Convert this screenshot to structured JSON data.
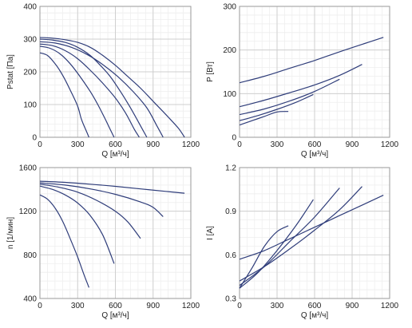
{
  "colors": {
    "curve": "#2f3d7a",
    "minor_grid": "#eeeeee",
    "major_grid": "#cfcfcf",
    "axis": "#9a9a9a"
  },
  "chart_data": [
    {
      "type": "line",
      "xlabel": "Q [м³/ч]",
      "ylabel": "Pstat [Па]",
      "xlim": [
        0,
        1200
      ],
      "ylim": [
        0,
        400
      ],
      "xticks": [
        0,
        300,
        600,
        900,
        1200
      ],
      "yticks": [
        0,
        100,
        200,
        300,
        400
      ],
      "x_minor_step": 60,
      "y_minor_step": 20,
      "grid": true,
      "legend": "none",
      "series": [
        {
          "x": [
            0,
            60,
            120,
            180,
            240,
            300,
            330,
            370,
            390
          ],
          "y": [
            258,
            250,
            225,
            190,
            145,
            95,
            55,
            18,
            0
          ]
        },
        {
          "x": [
            0,
            80,
            160,
            240,
            320,
            400,
            460,
            520,
            570,
            590
          ],
          "y": [
            278,
            272,
            255,
            225,
            185,
            140,
            100,
            55,
            15,
            0
          ]
        },
        {
          "x": [
            0,
            100,
            200,
            300,
            400,
            500,
            600,
            680,
            750,
            790
          ],
          "y": [
            285,
            280,
            265,
            240,
            205,
            165,
            120,
            75,
            25,
            0
          ]
        },
        {
          "x": [
            0,
            120,
            250,
            380,
            500,
            620,
            740,
            850,
            930,
            980
          ],
          "y": [
            292,
            288,
            275,
            252,
            222,
            185,
            140,
            90,
            35,
            0
          ]
        },
        {
          "x": [
            0,
            100,
            200,
            300,
            400,
            500,
            600,
            700,
            800,
            900,
            1000,
            1100,
            1150
          ],
          "y": [
            305,
            303,
            298,
            290,
            275,
            250,
            220,
            185,
            150,
            110,
            70,
            28,
            0
          ]
        },
        {
          "x": [
            0,
            100,
            200,
            300,
            400,
            480,
            560,
            640,
            720,
            800,
            850
          ],
          "y": [
            300,
            297,
            290,
            275,
            250,
            220,
            185,
            140,
            90,
            35,
            0
          ]
        }
      ]
    },
    {
      "type": "line",
      "xlabel": "Q [м³/ч]",
      "ylabel": "P [Вт]",
      "xlim": [
        0,
        1200
      ],
      "ylim": [
        0,
        300
      ],
      "xticks": [
        0,
        300,
        600,
        900,
        1200
      ],
      "yticks": [
        0,
        100,
        200,
        300
      ],
      "x_minor_step": 60,
      "y_minor_step": 20,
      "grid": true,
      "legend": "none",
      "series": [
        {
          "x": [
            0,
            200,
            400,
            600,
            800,
            1000,
            1150
          ],
          "y": [
            125,
            140,
            158,
            176,
            196,
            215,
            229
          ]
        },
        {
          "x": [
            0,
            200,
            400,
            600,
            800,
            980
          ],
          "y": [
            70,
            85,
            102,
            120,
            142,
            167
          ]
        },
        {
          "x": [
            0,
            200,
            400,
            600,
            800
          ],
          "y": [
            52,
            65,
            83,
            105,
            133
          ]
        },
        {
          "x": [
            0,
            150,
            300,
            450,
            590
          ],
          "y": [
            38,
            50,
            64,
            80,
            98
          ]
        },
        {
          "x": [
            0,
            100,
            200,
            300,
            390
          ],
          "y": [
            28,
            38,
            48,
            58,
            59
          ]
        }
      ]
    },
    {
      "type": "line",
      "xlabel": "Q [м³/ч]",
      "ylabel": "n [1/мин]",
      "xlim": [
        0,
        1200
      ],
      "ylim": [
        400,
        1600
      ],
      "xticks": [
        0,
        300,
        600,
        900,
        1200
      ],
      "yticks": [
        400,
        800,
        1200,
        1600
      ],
      "x_minor_step": 60,
      "y_minor_step": 80,
      "grid": true,
      "legend": "none",
      "series": [
        {
          "x": [
            0,
            200,
            400,
            600,
            800,
            1000,
            1150
          ],
          "y": [
            1475,
            1465,
            1448,
            1428,
            1405,
            1382,
            1365
          ]
        },
        {
          "x": [
            0,
            200,
            400,
            600,
            800,
            900,
            980
          ],
          "y": [
            1460,
            1440,
            1405,
            1355,
            1285,
            1235,
            1150
          ]
        },
        {
          "x": [
            0,
            150,
            300,
            450,
            600,
            700,
            800
          ],
          "y": [
            1448,
            1420,
            1375,
            1300,
            1200,
            1100,
            950
          ]
        },
        {
          "x": [
            0,
            100,
            200,
            300,
            400,
            500,
            590
          ],
          "y": [
            1430,
            1400,
            1350,
            1275,
            1160,
            980,
            720
          ]
        },
        {
          "x": [
            0,
            60,
            120,
            180,
            240,
            300,
            350,
            390
          ],
          "y": [
            1350,
            1310,
            1230,
            1110,
            950,
            780,
            620,
            500
          ]
        }
      ]
    },
    {
      "type": "line",
      "xlabel": "Q [м³/ч]",
      "ylabel": "I [A]",
      "xlim": [
        0,
        1200
      ],
      "ylim": [
        0.3,
        1.2
      ],
      "xticks": [
        0,
        300,
        600,
        900,
        1200
      ],
      "yticks": [
        0.3,
        0.6,
        0.9,
        1.2
      ],
      "x_minor_step": 60,
      "y_minor_step": 0.06,
      "grid": true,
      "legend": "none",
      "series": [
        {
          "x": [
            0,
            200,
            400,
            600,
            800,
            1000,
            1150
          ],
          "y": [
            0.57,
            0.63,
            0.71,
            0.79,
            0.87,
            0.95,
            1.01
          ]
        },
        {
          "x": [
            0,
            200,
            400,
            600,
            800,
            980
          ],
          "y": [
            0.42,
            0.52,
            0.64,
            0.77,
            0.91,
            1.07
          ]
        },
        {
          "x": [
            0,
            200,
            400,
            600,
            800
          ],
          "y": [
            0.39,
            0.52,
            0.69,
            0.86,
            1.06
          ]
        },
        {
          "x": [
            0,
            150,
            300,
            450,
            590
          ],
          "y": [
            0.37,
            0.48,
            0.63,
            0.8,
            0.98
          ]
        },
        {
          "x": [
            0,
            100,
            200,
            300,
            390
          ],
          "y": [
            0.37,
            0.51,
            0.66,
            0.76,
            0.8
          ]
        }
      ]
    }
  ]
}
